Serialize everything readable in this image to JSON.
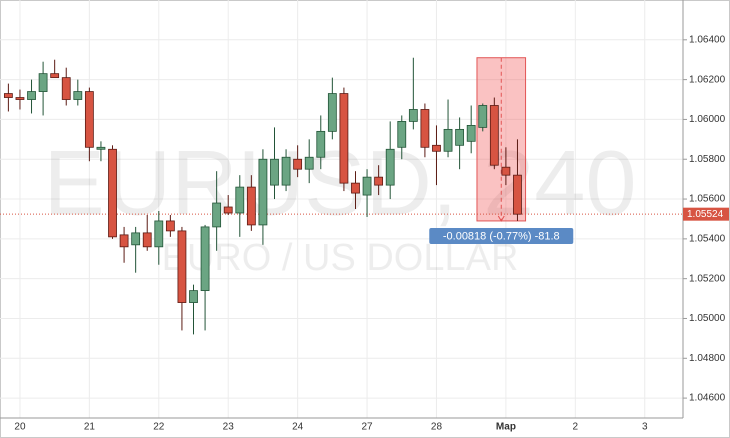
{
  "chart_data": {
    "type": "candlestick",
    "watermark": "EURUSD, 240",
    "watermark_subtitle": "EURO / US DOLLAR",
    "categories": [
      null,
      "20",
      null,
      null,
      null,
      null,
      null,
      "21",
      null,
      null,
      null,
      null,
      null,
      "22",
      null,
      null,
      null,
      null,
      null,
      "23",
      null,
      null,
      null,
      null,
      null,
      "24",
      null,
      null,
      null,
      null,
      null,
      "27",
      null,
      null,
      null,
      null,
      null,
      "28",
      null,
      null,
      null,
      null,
      null,
      "Мар",
      null,
      null,
      null,
      null,
      null,
      "2",
      null,
      null,
      null,
      null,
      null,
      "3",
      null,
      null,
      null
    ],
    "open": [
      1.0613,
      1.0611,
      1.061,
      1.0614,
      1.0623,
      1.0621,
      1.061,
      1.0614,
      1.0585,
      1.0585,
      1.0542,
      1.0537,
      1.0543,
      1.0536,
      1.0549,
      1.0544,
      1.0508,
      1.0514,
      1.0546,
      1.0556,
      1.0553,
      1.0566,
      1.0547,
      1.0567,
      1.0567,
      1.058,
      1.0575,
      1.0581,
      1.0594,
      1.0613,
      1.0568,
      1.0562,
      1.0571,
      1.0567,
      1.0586,
      1.0599,
      1.0605,
      1.0587,
      1.0584,
      1.0587,
      1.0589,
      1.0596,
      1.0607,
      1.0576,
      1.0572,
      null,
      null,
      null,
      null,
      null,
      null,
      null,
      null,
      null,
      null,
      null,
      null,
      null,
      null
    ],
    "high": [
      1.0618,
      1.0615,
      1.062,
      1.0629,
      1.063,
      1.0626,
      1.062,
      1.0616,
      1.0589,
      1.0587,
      1.0546,
      1.0546,
      1.0552,
      1.0554,
      1.0552,
      1.0546,
      1.0517,
      1.0547,
      1.0574,
      1.0562,
      1.0572,
      1.0572,
      1.0585,
      1.0596,
      1.0585,
      1.0587,
      1.059,
      1.0602,
      1.0621,
      1.0616,
      1.0574,
      1.0575,
      1.0577,
      1.0599,
      1.0602,
      1.0631,
      1.0608,
      1.0597,
      1.061,
      1.0601,
      1.0607,
      1.0608,
      1.0611,
      1.0586,
      1.059,
      null,
      null,
      null,
      null,
      null,
      null,
      null,
      null,
      null,
      null,
      null,
      null,
      null,
      null
    ],
    "low": [
      1.0604,
      1.0605,
      1.0603,
      1.0602,
      1.0621,
      1.0607,
      1.0607,
      1.0579,
      1.0579,
      1.054,
      1.0528,
      1.0523,
      1.0534,
      1.0527,
      1.0541,
      1.0494,
      1.0492,
      1.0494,
      1.0534,
      1.0552,
      1.0541,
      1.0544,
      1.0537,
      1.056,
      1.0564,
      1.0571,
      1.0568,
      1.0575,
      1.059,
      1.0564,
      1.0555,
      1.0551,
      1.0562,
      1.056,
      1.058,
      1.0595,
      1.0581,
      1.0567,
      1.0581,
      1.0575,
      1.0583,
      1.0594,
      1.0575,
      1.0567,
      1.0549,
      null,
      null,
      null,
      null,
      null,
      null,
      null,
      null,
      null,
      null,
      null,
      null,
      null,
      null
    ],
    "close": [
      1.0611,
      1.061,
      1.0614,
      1.0623,
      1.0621,
      1.061,
      1.0614,
      1.0586,
      1.0586,
      1.0541,
      1.0536,
      1.0543,
      1.0536,
      1.0549,
      1.0544,
      1.0508,
      1.0514,
      1.0546,
      1.0558,
      1.0553,
      1.0566,
      1.0547,
      1.058,
      1.058,
      1.0581,
      1.0575,
      1.0581,
      1.0594,
      1.0613,
      1.0568,
      1.0563,
      1.0571,
      1.0567,
      1.0585,
      1.0599,
      1.0605,
      1.0586,
      1.0584,
      1.0595,
      1.0595,
      1.0597,
      1.0607,
      1.0577,
      1.0572,
      1.05524,
      null,
      null,
      null,
      null,
      null,
      null,
      null,
      null,
      null,
      null,
      null,
      null,
      null,
      null
    ],
    "up_color": "#6ba583",
    "down_color": "#d75442",
    "ylim": [
      1.045,
      1.066
    ],
    "yticks": [
      {
        "value": 1.046,
        "label": "1.04600"
      },
      {
        "value": 1.048,
        "label": "1.04800"
      },
      {
        "value": 1.05,
        "label": "1.05000"
      },
      {
        "value": 1.052,
        "label": "1.05200"
      },
      {
        "value": 1.054,
        "label": "1.05400"
      },
      {
        "value": 1.056,
        "label": "1.05600"
      },
      {
        "value": 1.058,
        "label": "1.05800"
      },
      {
        "value": 1.06,
        "label": "1.06000"
      },
      {
        "value": 1.062,
        "label": "1.06200"
      },
      {
        "value": 1.064,
        "label": "1.06400"
      }
    ],
    "grid": true,
    "last_price": {
      "value": 1.05524,
      "label": "1.05524"
    },
    "measure": {
      "from": 1.0631,
      "to": 1.0549,
      "label": "-0.00818 (-0.77%) -81.8"
    }
  }
}
